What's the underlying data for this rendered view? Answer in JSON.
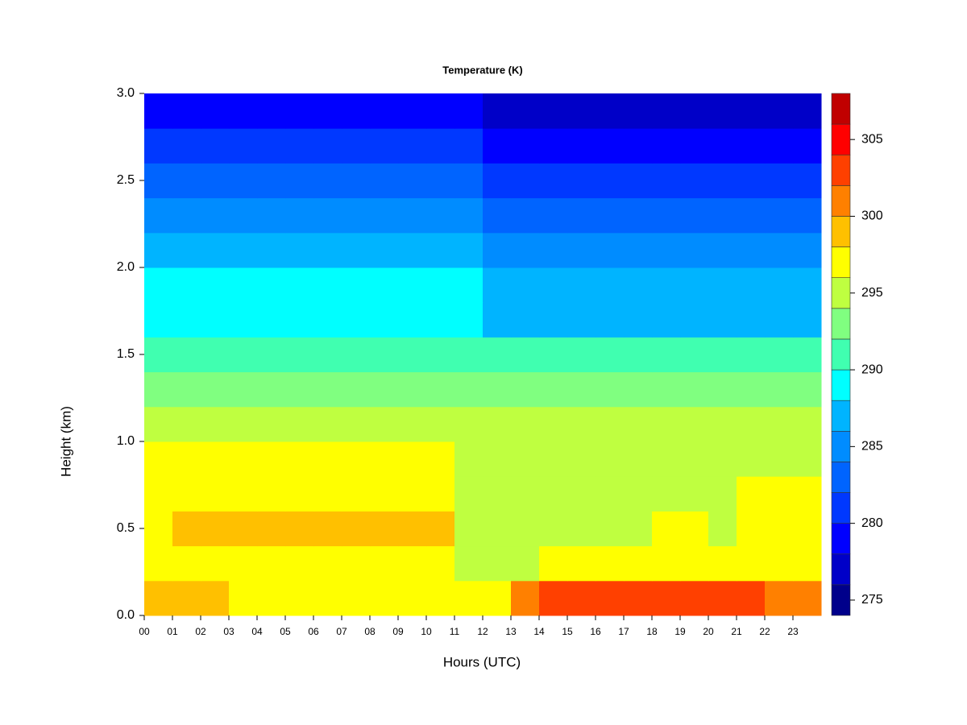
{
  "chart_data": {
    "type": "heatmap",
    "title": "Temperature (K)",
    "x_label": "Hours (UTC)",
    "y_label": "Height (km)",
    "x": [
      0,
      1,
      2,
      3,
      4,
      5,
      6,
      7,
      8,
      9,
      10,
      11,
      12,
      13,
      14,
      15,
      16,
      17,
      18,
      19,
      20,
      21,
      22,
      23
    ],
    "y": [
      0.1,
      0.3,
      0.5,
      0.7,
      0.9,
      1.1,
      1.3,
      1.5,
      1.7,
      1.9,
      2.1,
      2.3,
      2.5,
      2.7,
      2.9
    ],
    "z": [
      [
        299,
        299,
        299,
        297,
        297,
        297,
        297,
        297,
        297,
        297,
        297,
        296,
        296,
        300,
        302,
        303,
        302,
        302,
        302,
        303,
        302,
        302,
        300,
        300
      ],
      [
        297,
        297,
        297,
        297,
        297,
        297,
        297,
        297,
        297,
        297,
        297,
        295,
        295,
        295,
        296,
        297,
        296,
        296,
        297,
        297,
        297,
        297,
        297,
        297
      ],
      [
        297,
        298.5,
        298.5,
        298.5,
        298.5,
        299,
        299,
        298.5,
        298.5,
        298.5,
        298.5,
        295,
        295,
        295,
        295,
        295,
        295,
        295,
        296,
        296,
        295,
        297,
        297,
        297
      ],
      [
        297,
        297,
        297,
        297,
        297,
        297,
        297,
        297,
        297,
        297,
        297,
        295,
        295,
        295,
        295,
        295,
        295,
        295,
        295,
        295,
        295,
        296,
        297,
        297
      ],
      [
        296.5,
        296.5,
        296.5,
        296.5,
        296.5,
        296.5,
        296.5,
        296.5,
        296.5,
        296.5,
        296.5,
        295,
        295,
        295,
        295,
        295,
        295,
        295,
        295,
        295,
        295,
        295,
        295,
        295
      ],
      [
        295,
        295,
        295,
        295,
        295,
        295,
        295,
        295,
        295,
        295,
        295,
        295,
        295,
        295,
        295,
        295,
        295,
        295,
        295,
        295,
        295,
        295,
        295,
        295
      ],
      [
        293,
        293,
        293,
        293,
        293,
        293,
        293,
        293,
        293,
        293,
        293,
        293,
        293,
        293,
        293,
        293,
        293,
        293,
        293,
        293,
        293,
        293,
        293,
        293
      ],
      [
        291,
        291,
        291,
        291,
        291,
        291,
        291,
        291,
        291,
        291,
        291,
        291,
        291,
        291,
        291,
        291,
        291,
        291,
        291,
        291,
        291,
        291,
        291,
        291
      ],
      [
        289,
        289,
        289,
        289,
        289,
        289,
        289,
        289,
        289,
        289,
        289,
        289,
        287.5,
        287.5,
        287.5,
        287.5,
        287.5,
        287.5,
        287.5,
        287.5,
        287.5,
        287.5,
        287.5,
        287.5
      ],
      [
        288.5,
        288.5,
        288.5,
        288.5,
        288.5,
        288.5,
        288.5,
        288.5,
        288.5,
        288.5,
        288.5,
        288.5,
        287,
        287,
        287,
        287,
        287,
        287,
        287,
        287,
        287,
        287,
        287,
        287
      ],
      [
        287,
        287,
        287,
        287,
        287,
        287,
        287,
        287,
        287,
        287,
        287,
        287,
        285.5,
        285.5,
        285.5,
        285.5,
        285.5,
        285.5,
        285.5,
        285.5,
        285.5,
        285.5,
        285.5,
        285.5
      ],
      [
        284.5,
        284.5,
        284.5,
        284.5,
        284.5,
        284.5,
        284.5,
        284.5,
        284.5,
        284.5,
        284.5,
        284.5,
        283.5,
        283.5,
        283.5,
        283.5,
        283.5,
        283.5,
        283.5,
        283.5,
        283.5,
        283.5,
        283.5,
        283.5
      ],
      [
        282.5,
        282.5,
        282.5,
        282.5,
        282.5,
        282.5,
        282.5,
        282.5,
        282.5,
        282.5,
        282.5,
        282.5,
        281.5,
        281.5,
        281.5,
        281.5,
        281.5,
        281.5,
        281.5,
        281.5,
        281.5,
        281.5,
        281.5,
        281.5
      ],
      [
        280.5,
        280.5,
        280.5,
        280.5,
        280.5,
        280.5,
        280.5,
        280.5,
        280.5,
        280.5,
        280.5,
        280.5,
        279.5,
        279.5,
        279.5,
        279.5,
        279.5,
        279.5,
        279.5,
        279.5,
        279.5,
        279.5,
        279.5,
        279.5
      ],
      [
        278.5,
        278.5,
        278.5,
        278.5,
        278.5,
        278.5,
        278.5,
        278.5,
        278.5,
        278.5,
        278.5,
        278.5,
        277.5,
        277.5,
        277.5,
        277.5,
        277.5,
        277.5,
        277.5,
        277.5,
        277.5,
        277.5,
        277.5,
        277.5
      ]
    ],
    "xlim": [
      0,
      24
    ],
    "ylim": [
      0,
      3
    ],
    "xticks": [
      {
        "value": 0,
        "label": "00"
      },
      {
        "value": 1,
        "label": "01"
      },
      {
        "value": 2,
        "label": "02"
      },
      {
        "value": 3,
        "label": "03"
      },
      {
        "value": 4,
        "label": "04"
      },
      {
        "value": 5,
        "label": "05"
      },
      {
        "value": 6,
        "label": "06"
      },
      {
        "value": 7,
        "label": "07"
      },
      {
        "value": 8,
        "label": "08"
      },
      {
        "value": 9,
        "label": "09"
      },
      10,
      11,
      12,
      13,
      14,
      15,
      16,
      17,
      18,
      19,
      20,
      21,
      22,
      23
    ],
    "yticks": [
      {
        "value": 0,
        "label": "0.0"
      },
      0.5,
      {
        "value": 1,
        "label": "1.0"
      },
      1.5,
      {
        "value": 2,
        "label": "2.0"
      },
      2.5,
      {
        "value": 3,
        "label": "3.0"
      }
    ],
    "levels": [
      274,
      276,
      278,
      280,
      282,
      284,
      286,
      288,
      290,
      292,
      294,
      296,
      298,
      300,
      302,
      304,
      306,
      308
    ],
    "colors": [
      "#00008B",
      "#0000C8",
      "#0000FF",
      "#0038FF",
      "#0064FF",
      "#008CFF",
      "#00B4FF",
      "#00FFFF",
      "#40FFB0",
      "#80FF80",
      "#BFFF40",
      "#FFFF00",
      "#FFC000",
      "#FF8000",
      "#FF4000",
      "#FF0000",
      "#C00000",
      "#800000"
    ],
    "colorbar_ticks": [
      275,
      280,
      285,
      290,
      295,
      300,
      305
    ]
  }
}
